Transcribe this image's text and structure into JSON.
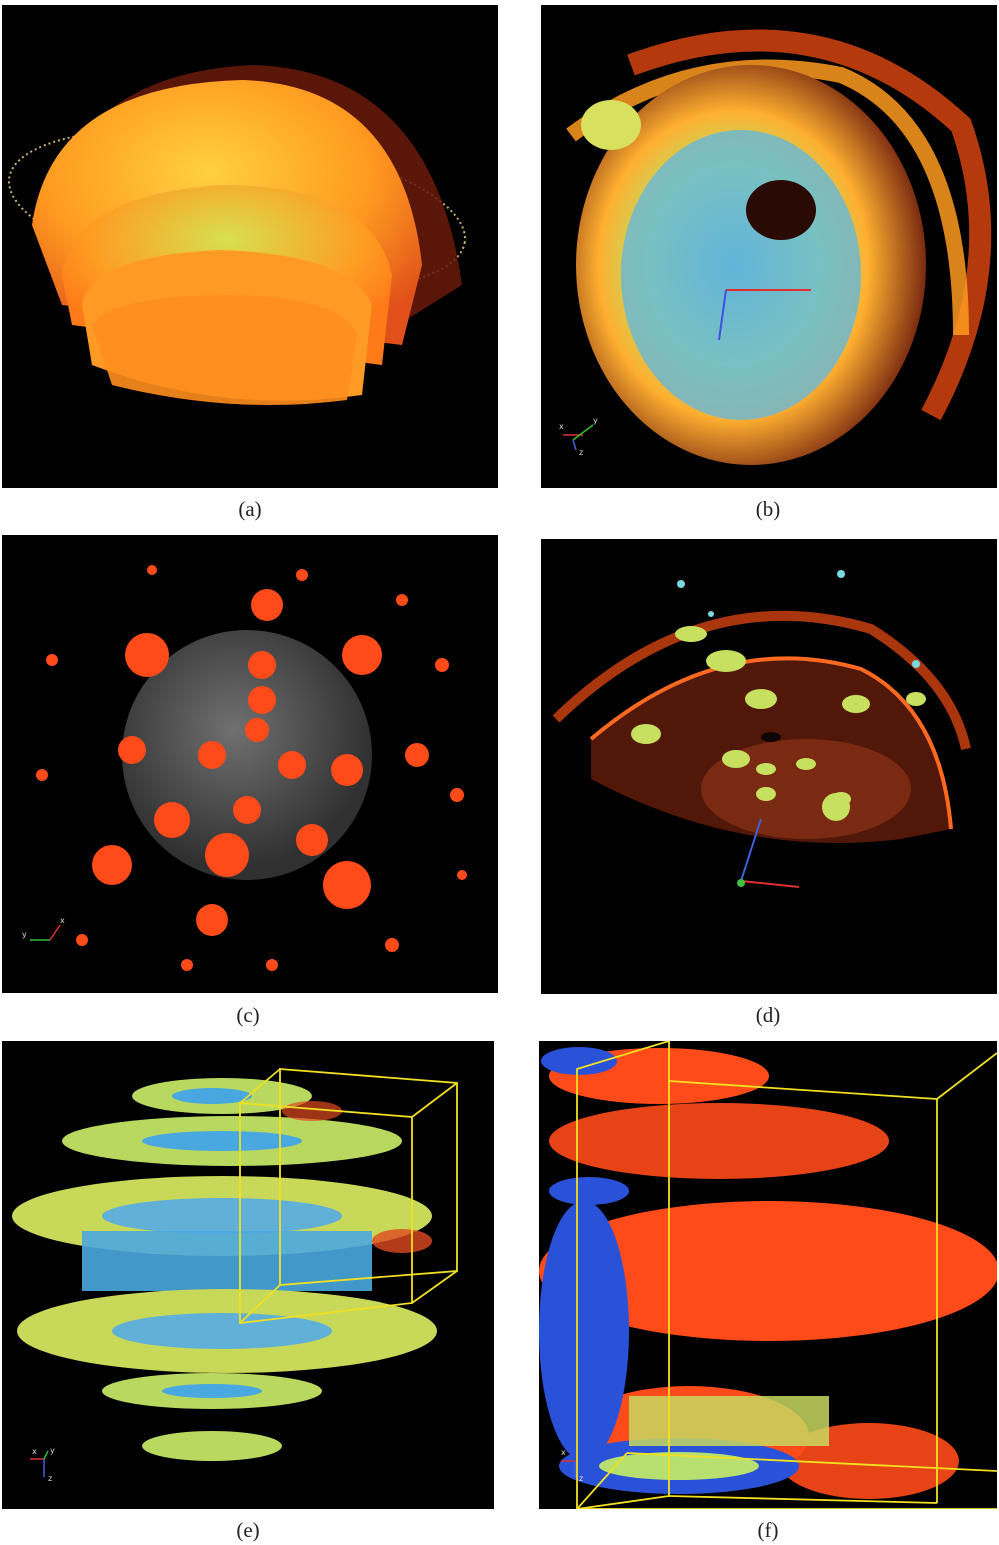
{
  "figure": {
    "panels": [
      {
        "id": "a",
        "caption": "(a)"
      },
      {
        "id": "b",
        "caption": "(b)"
      },
      {
        "id": "c",
        "caption": "(c)"
      },
      {
        "id": "d",
        "caption": "(d)"
      },
      {
        "id": "e",
        "caption": "(e)"
      },
      {
        "id": "f",
        "caption": "(f)"
      }
    ],
    "axis_triad_labels": {
      "x": "x",
      "y": "y",
      "z": "z"
    },
    "colors": {
      "background": "#000000",
      "hot_orange": "#ff8a1a",
      "deep_red": "#e02a10",
      "yellow_green": "#c8e04a",
      "cyan_blue": "#4aa8e0",
      "royal_blue": "#2a52d8",
      "bounding_box_yellow": "#f2e020"
    }
  }
}
